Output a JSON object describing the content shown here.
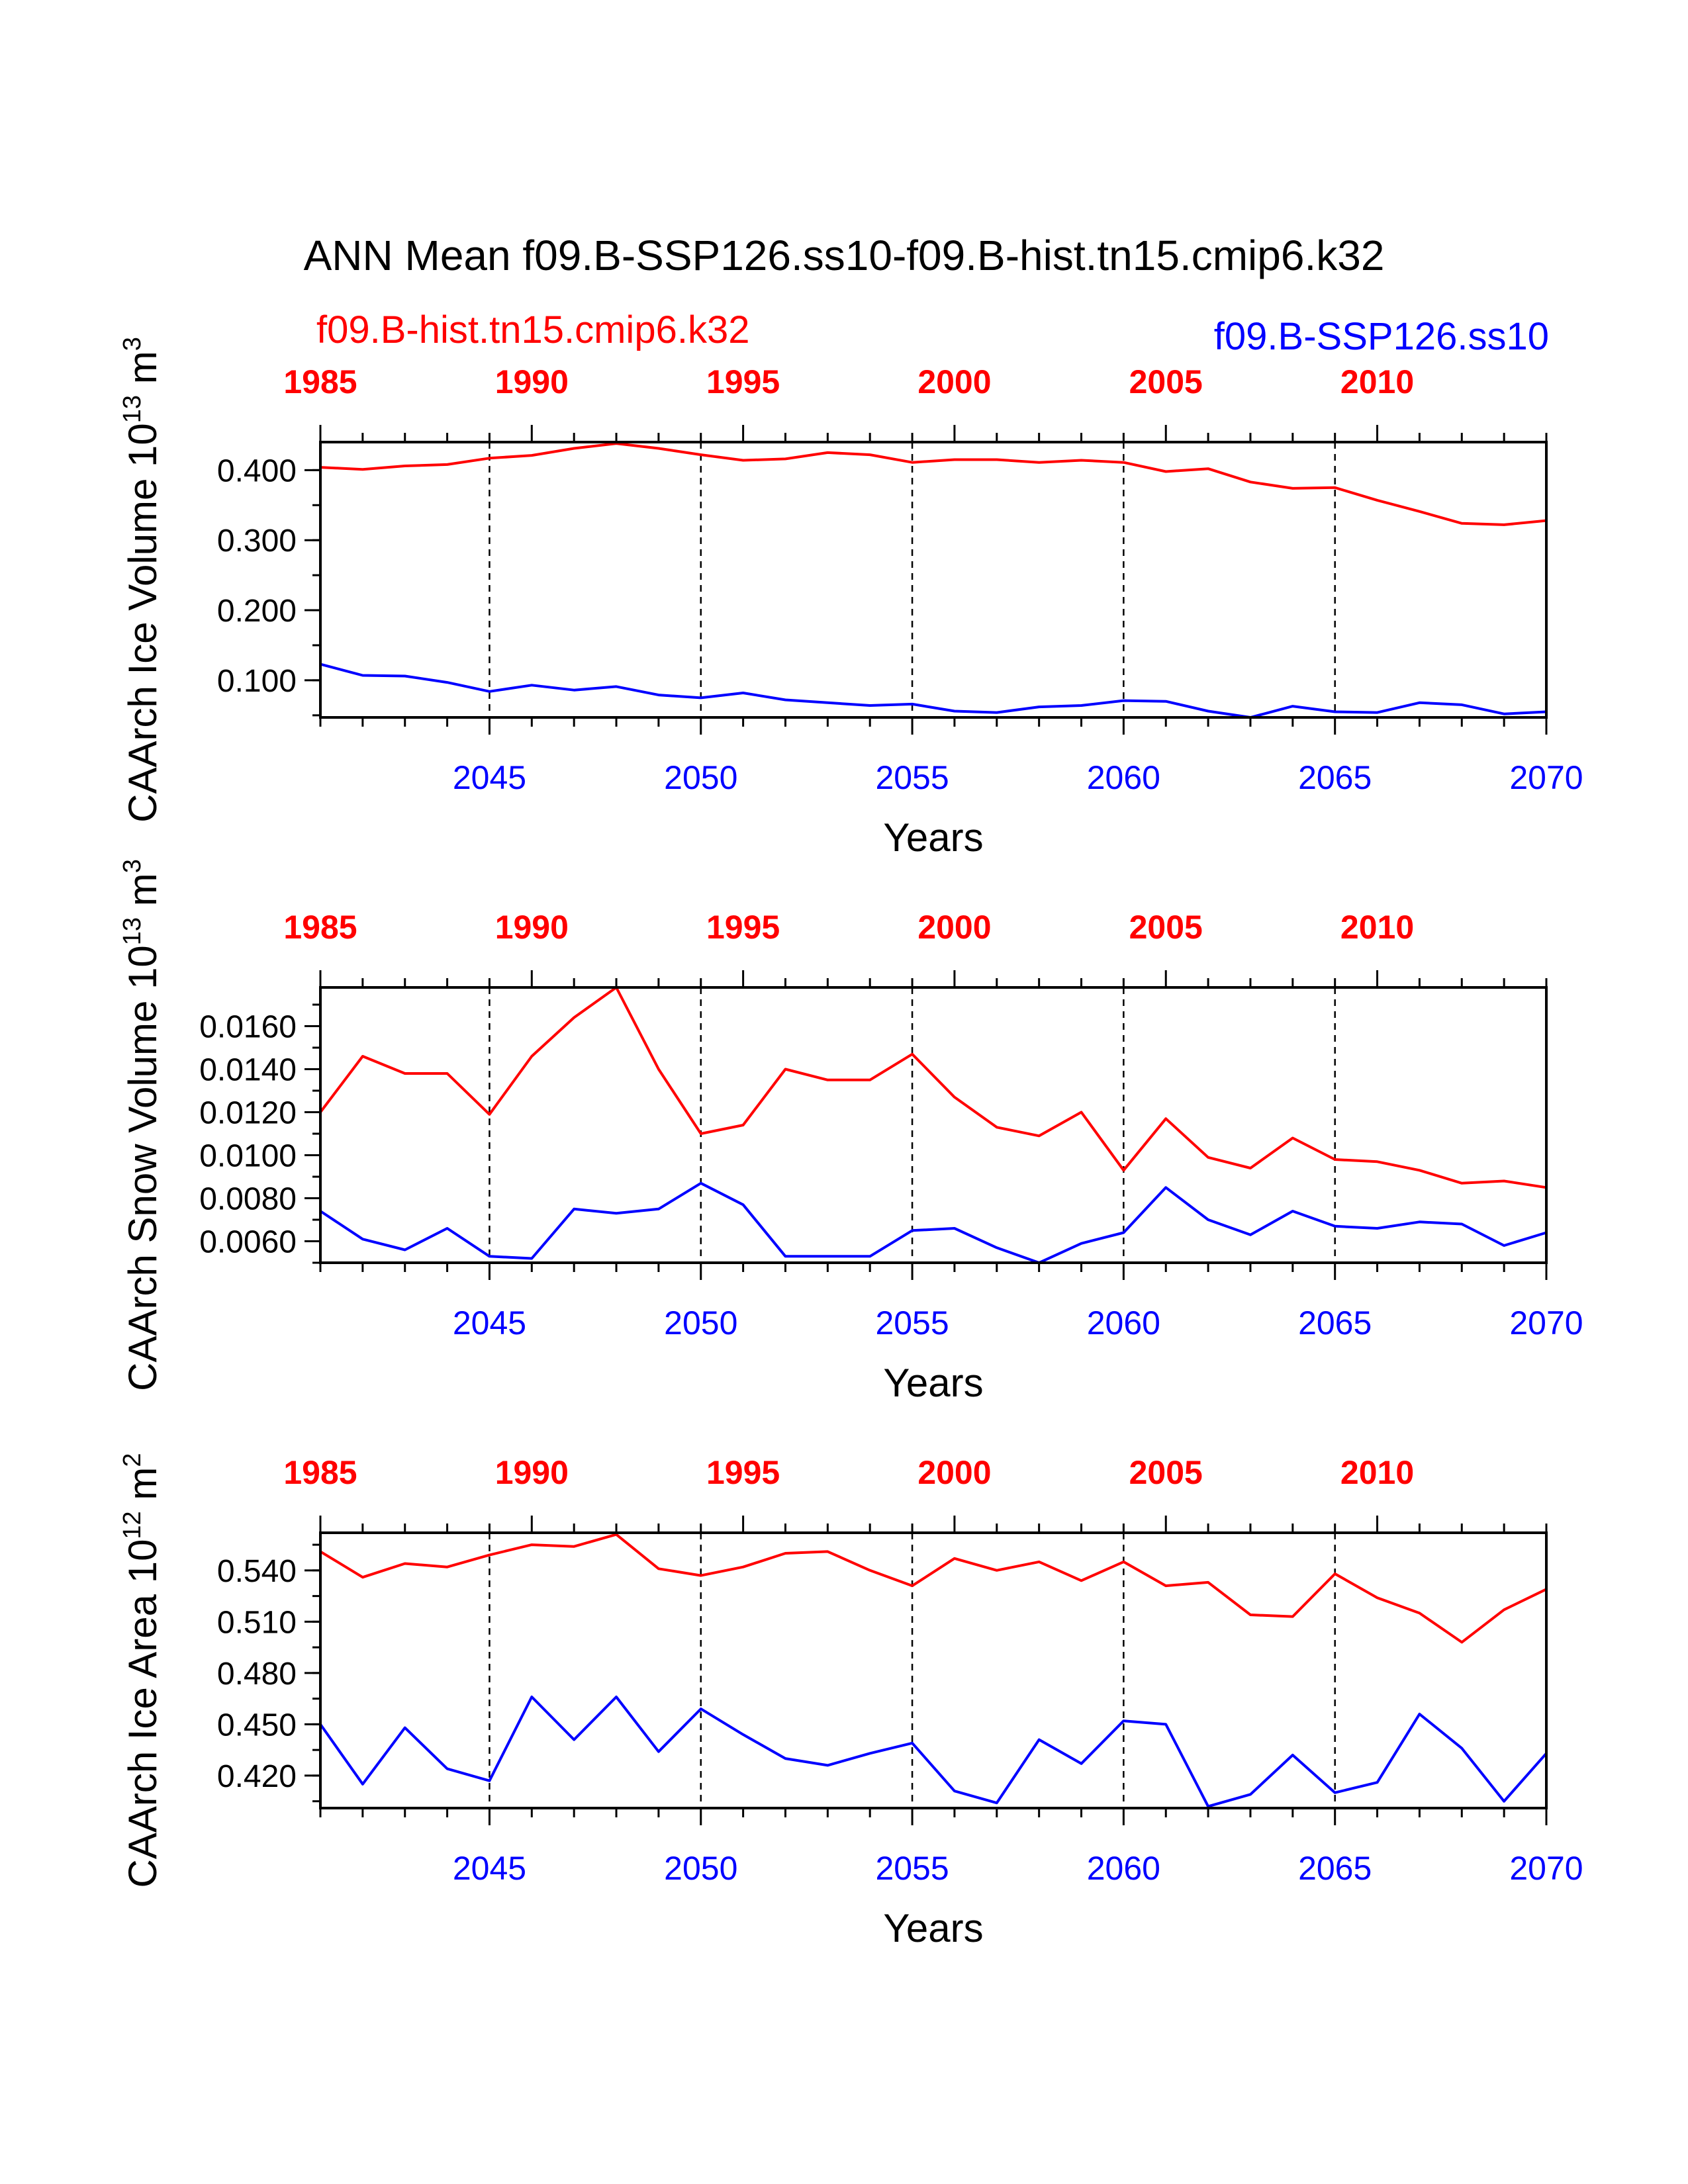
{
  "title": "ANN Mean f09.B-SSP126.ss10-f09.B-hist.tn15.cmip6.k32",
  "legend": {
    "hist_label": "f09.B-hist.tn15.cmip6.k32",
    "ssp_label": "f09.B-SSP126.ss10"
  },
  "colors": {
    "hist": "#ff0000",
    "ssp": "#0000ff",
    "axis": "#000000"
  },
  "chart_data": [
    {
      "type": "line",
      "ylabel": "CAArch Ice Volume 10",
      "ylabel_exp": "13",
      "ylabel_unit": " m",
      "ylabel_unit_exp": "3",
      "xlabel": "Years",
      "ylim": [
        0.047,
        0.44
      ],
      "yticks": [
        0.1,
        0.2,
        0.3,
        0.4
      ],
      "ytick_labels": [
        "0.100",
        "0.200",
        "0.300",
        "0.400"
      ],
      "top_xticks": [
        "1985",
        "1990",
        "1995",
        "2000",
        "2005",
        "2010"
      ],
      "bottom_xticks": [
        "2045",
        "2050",
        "2055",
        "2060",
        "2065",
        "2070"
      ],
      "series": [
        {
          "values": [
            0.404,
            0.401,
            0.406,
            0.408,
            0.417,
            0.421,
            0.431,
            0.438,
            0.431,
            0.422,
            0.414,
            0.416,
            0.425,
            0.422,
            0.411,
            0.415,
            0.415,
            0.411,
            0.414,
            0.411,
            0.398,
            0.402,
            0.383,
            0.374,
            0.375,
            0.357,
            0.341,
            0.324,
            0.322,
            0.328
          ]
        },
        {
          "values": [
            0.123,
            0.107,
            0.106,
            0.097,
            0.084,
            0.093,
            0.086,
            0.091,
            0.079,
            0.075,
            0.082,
            0.072,
            0.068,
            0.064,
            0.066,
            0.056,
            0.054,
            0.062,
            0.064,
            0.071,
            0.07,
            0.056,
            0.047,
            0.063,
            0.055,
            0.054,
            0.068,
            0.065,
            0.052,
            0.055
          ]
        }
      ]
    },
    {
      "type": "line",
      "ylabel": "CAArch Snow Volume 10",
      "ylabel_exp": "13",
      "ylabel_unit": " m",
      "ylabel_unit_exp": "3",
      "xlabel": "Years",
      "ylim": [
        0.005,
        0.0178
      ],
      "yticks": [
        0.006,
        0.008,
        0.01,
        0.012,
        0.014,
        0.016
      ],
      "ytick_labels": [
        "0.0060",
        "0.0080",
        "0.0100",
        "0.0120",
        "0.0140",
        "0.0160"
      ],
      "top_xticks": [
        "1985",
        "1990",
        "1995",
        "2000",
        "2005",
        "2010"
      ],
      "bottom_xticks": [
        "2045",
        "2050",
        "2055",
        "2060",
        "2065",
        "2070"
      ],
      "series": [
        {
          "values": [
            0.012,
            0.0146,
            0.0138,
            0.0138,
            0.0119,
            0.0146,
            0.0164,
            0.0178,
            0.014,
            0.011,
            0.0114,
            0.014,
            0.0135,
            0.0135,
            0.0147,
            0.0127,
            0.0113,
            0.0109,
            0.012,
            0.0093,
            0.0117,
            0.0099,
            0.0094,
            0.0108,
            0.0098,
            0.0097,
            0.0093,
            0.0087,
            0.0088,
            0.0085
          ]
        },
        {
          "values": [
            0.0074,
            0.0061,
            0.0056,
            0.0066,
            0.0053,
            0.0052,
            0.0075,
            0.0073,
            0.0075,
            0.0087,
            0.0077,
            0.0053,
            0.0053,
            0.0053,
            0.0065,
            0.0066,
            0.0057,
            0.005,
            0.0059,
            0.0064,
            0.0085,
            0.007,
            0.0063,
            0.0074,
            0.0067,
            0.0066,
            0.0069,
            0.0068,
            0.0058,
            0.0064
          ]
        }
      ]
    },
    {
      "type": "line",
      "ylabel": "CAArch Ice Area 10",
      "ylabel_exp": "12",
      "ylabel_unit": " m",
      "ylabel_unit_exp": "2",
      "xlabel": "Years",
      "ylim": [
        0.401,
        0.562
      ],
      "yticks": [
        0.42,
        0.45,
        0.48,
        0.51,
        0.54
      ],
      "ytick_labels": [
        "0.420",
        "0.450",
        "0.480",
        "0.510",
        "0.540"
      ],
      "top_xticks": [
        "1985",
        "1990",
        "1995",
        "2000",
        "2005",
        "2010"
      ],
      "bottom_xticks": [
        "2045",
        "2050",
        "2055",
        "2060",
        "2065",
        "2070"
      ],
      "series": [
        {
          "values": [
            0.551,
            0.536,
            0.544,
            0.542,
            0.549,
            0.555,
            0.554,
            0.561,
            0.541,
            0.537,
            0.542,
            0.55,
            0.551,
            0.54,
            0.531,
            0.547,
            0.54,
            0.545,
            0.534,
            0.545,
            0.531,
            0.533,
            0.514,
            0.513,
            0.538,
            0.524,
            0.515,
            0.498,
            0.517,
            0.529
          ]
        },
        {
          "values": [
            0.45,
            0.415,
            0.448,
            0.424,
            0.417,
            0.466,
            0.441,
            0.466,
            0.434,
            0.459,
            0.444,
            0.43,
            0.426,
            0.433,
            0.439,
            0.411,
            0.404,
            0.441,
            0.427,
            0.452,
            0.45,
            0.402,
            0.409,
            0.432,
            0.41,
            0.416,
            0.456,
            0.436,
            0.405,
            0.433
          ]
        }
      ]
    }
  ]
}
